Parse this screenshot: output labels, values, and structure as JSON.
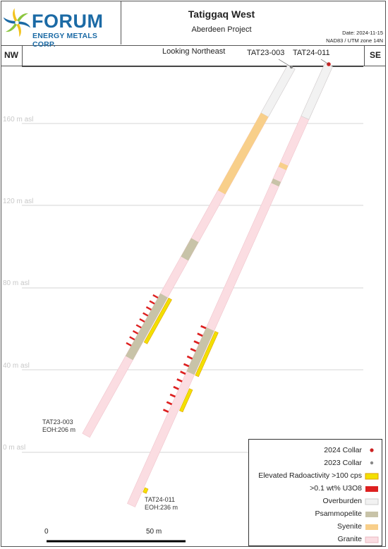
{
  "header": {
    "brand": "FORUM",
    "brand_sub": "ENERGY METALS CORP.",
    "title": "Tatiggaq West",
    "subtitle": "Aberdeen Project",
    "date": "Date: 2024-11-15",
    "datum": "NAD83 / UTM zone 14N"
  },
  "section": {
    "nw": "NW",
    "se": "SE",
    "looking": "Looking Northeast",
    "elevations": [
      "160  m asl",
      "120  m asl",
      "80  m asl",
      "40  m asl",
      "0  m asl"
    ]
  },
  "holes": [
    {
      "name": "TAT23-003",
      "eoh_name": "TAT23-003",
      "eoh": "EOH:206  m"
    },
    {
      "name": "TAT24-011",
      "eoh_name": "TAT24-011",
      "eoh": "EOH:236  m"
    }
  ],
  "legend": {
    "items": [
      {
        "label": "2024 Collar",
        "color": "#cc2222",
        "symbol": "dot"
      },
      {
        "label": "2023 Collar",
        "color": "#888888",
        "symbol": "dot"
      },
      {
        "label": "Elevated Radoactivity >100 cps",
        "color": "#f3e000",
        "symbol": "box"
      },
      {
        "label": ">0.1 wt% U3O8",
        "color": "#dd2020",
        "symbol": "box"
      },
      {
        "label": "Overburden",
        "color": "#f2f2f2",
        "symbol": "box"
      },
      {
        "label": "Psammopelite",
        "color": "#c8c3a8",
        "symbol": "box"
      },
      {
        "label": "Syenite",
        "color": "#f8cf8a",
        "symbol": "box"
      },
      {
        "label": "Granite",
        "color": "#fbdde2",
        "symbol": "box"
      }
    ]
  },
  "scale": {
    "start": "0",
    "end": "50 m"
  }
}
